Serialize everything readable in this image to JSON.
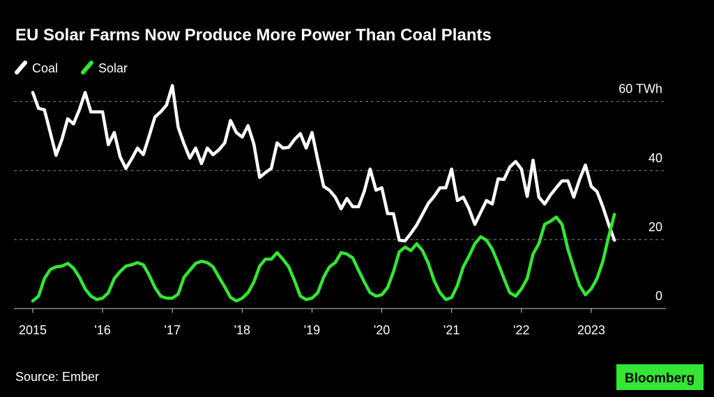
{
  "chart_data": {
    "type": "line",
    "title": "EU Solar Farms Now Produce More Power Than Coal Plants",
    "source": "Source: Ember",
    "brand": "Bloomberg",
    "x": [
      2015,
      2015.083,
      2015.167,
      2015.25,
      2015.333,
      2015.417,
      2015.5,
      2015.583,
      2015.667,
      2015.75,
      2015.833,
      2015.917,
      2016,
      2016.083,
      2016.167,
      2016.25,
      2016.333,
      2016.417,
      2016.5,
      2016.583,
      2016.667,
      2016.75,
      2016.833,
      2016.917,
      2017,
      2017.083,
      2017.167,
      2017.25,
      2017.333,
      2017.417,
      2017.5,
      2017.583,
      2017.667,
      2017.75,
      2017.833,
      2017.917,
      2018,
      2018.083,
      2018.167,
      2018.25,
      2018.333,
      2018.417,
      2018.5,
      2018.583,
      2018.667,
      2018.75,
      2018.833,
      2018.917,
      2019,
      2019.083,
      2019.167,
      2019.25,
      2019.333,
      2019.417,
      2019.5,
      2019.583,
      2019.667,
      2019.75,
      2019.833,
      2019.917,
      2020,
      2020.083,
      2020.167,
      2020.25,
      2020.333,
      2020.417,
      2020.5,
      2020.583,
      2020.667,
      2020.75,
      2020.833,
      2020.917,
      2021,
      2021.083,
      2021.167,
      2021.25,
      2021.333,
      2021.417,
      2021.5,
      2021.583,
      2021.667,
      2021.75,
      2021.833,
      2021.917,
      2022,
      2022.083,
      2022.167,
      2022.25,
      2022.333,
      2022.417,
      2022.5,
      2022.583,
      2022.667,
      2022.75,
      2022.833,
      2022.917,
      2023,
      2023.083,
      2023.167,
      2023.25,
      2023.333
    ],
    "series": [
      {
        "name": "Coal",
        "color": "#ffffff",
        "values": [
          62.6,
          58,
          57.6,
          51,
          44.4,
          49,
          55,
          53.5,
          57.6,
          62.6,
          57,
          57,
          57,
          47.5,
          51,
          44,
          40.6,
          43.4,
          46.5,
          44.6,
          50,
          55.5,
          57,
          59,
          64.6,
          52.5,
          47.7,
          43.6,
          46.5,
          42,
          46.5,
          44.6,
          46,
          48,
          54.5,
          51,
          49.7,
          53,
          47.7,
          38,
          39.4,
          40.6,
          48,
          46.5,
          46.7,
          49,
          50.7,
          46.5,
          51,
          43,
          35.4,
          34.3,
          32.3,
          28.9,
          31.9,
          29.5,
          29.5,
          34,
          40.4,
          34.3,
          35,
          27.5,
          27.5,
          19.8,
          19.6,
          21.8,
          24.2,
          27.3,
          30.5,
          32.5,
          35,
          35,
          40.4,
          31.3,
          32.3,
          28.9,
          24.4,
          27.9,
          31.3,
          30.3,
          37.6,
          37.4,
          41,
          42.6,
          40.4,
          32.5,
          43,
          32.3,
          30.3,
          32.9,
          35,
          37,
          37,
          32.3,
          37.4,
          41.6,
          35.4,
          33.9,
          29.5,
          24.4,
          19.8
        ]
      },
      {
        "name": "Solar",
        "color": "#33e633",
        "values": [
          2.2,
          3.6,
          8.7,
          11.3,
          12.1,
          12.3,
          13.1,
          11.7,
          9.1,
          5.7,
          3.6,
          2.6,
          3,
          4.6,
          8.7,
          10.7,
          12.3,
          12.7,
          13.3,
          12.7,
          9.7,
          6.1,
          3.6,
          3,
          3,
          4.2,
          9.1,
          11.1,
          13.1,
          13.7,
          13.3,
          12.1,
          9.1,
          6.3,
          3.2,
          2.2,
          3,
          4.6,
          7.7,
          12.3,
          14.3,
          14.3,
          16.2,
          14.3,
          12.1,
          8.1,
          3.6,
          2.6,
          3,
          4.6,
          9.1,
          12.1,
          13.3,
          16.2,
          15.8,
          14.7,
          11.1,
          7.7,
          4.6,
          3.6,
          4,
          6.1,
          10.7,
          16.4,
          17.8,
          16.8,
          18.8,
          16.8,
          13.1,
          8.1,
          4.6,
          2.6,
          3.2,
          6.7,
          12.1,
          15.2,
          18.8,
          20.8,
          19.8,
          17.2,
          13.1,
          8.7,
          4.6,
          3.6,
          5.7,
          8.7,
          15.8,
          18.8,
          24.4,
          25.3,
          26.5,
          24.4,
          17.2,
          11.7,
          6.7,
          4,
          5.7,
          8.7,
          13.7,
          20.8,
          27.3
        ]
      }
    ],
    "xlim": [
      2014.73,
      2024.07
    ],
    "xticks": [
      {
        "value": 2015,
        "label": "2015"
      },
      {
        "value": 2016,
        "label": "'16"
      },
      {
        "value": 2017,
        "label": "'17"
      },
      {
        "value": 2018,
        "label": "'18"
      },
      {
        "value": 2019,
        "label": "'19"
      },
      {
        "value": 2020,
        "label": "'20"
      },
      {
        "value": 2021,
        "label": "'21"
      },
      {
        "value": 2022,
        "label": "'22"
      },
      {
        "value": 2023,
        "label": "2023"
      }
    ],
    "ylim": [
      0,
      66
    ],
    "yticks": [
      0,
      20,
      40,
      {
        "value": 60,
        "label": "60 TWh"
      }
    ],
    "grid": true
  }
}
